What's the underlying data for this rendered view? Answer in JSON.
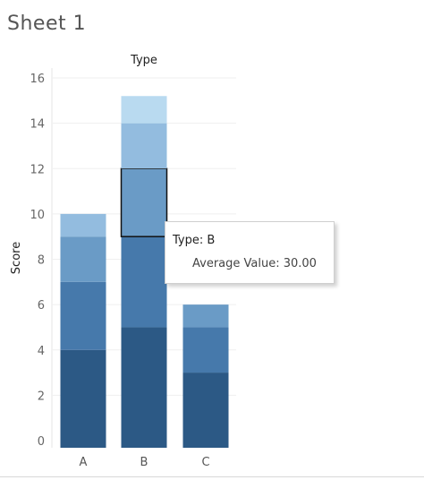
{
  "sheet_title": "Sheet 1",
  "tooltip": {
    "type_label": "Type: B",
    "value_label": "Average Value: 30.00"
  },
  "chart_data": {
    "type": "bar",
    "stacked": true,
    "title": "Type",
    "xlabel": "",
    "ylabel": "Score",
    "categories": [
      "A",
      "B",
      "C"
    ],
    "ylim": [
      0,
      16
    ],
    "yticks": [
      0,
      2,
      4,
      6,
      8,
      10,
      12,
      14,
      16
    ],
    "grid": true,
    "stacks": [
      {
        "category": "A",
        "segments": [
          4,
          3,
          2,
          1
        ]
      },
      {
        "category": "B",
        "segments": [
          5,
          4,
          3,
          2,
          1.2
        ]
      },
      {
        "category": "C",
        "segments": [
          3,
          2,
          1
        ]
      }
    ],
    "highlighted": {
      "category": "B",
      "segment_index": 2
    },
    "colors": [
      "#2c5985",
      "#4679ab",
      "#6a9bc6",
      "#93bcdf",
      "#b9daf0"
    ]
  }
}
